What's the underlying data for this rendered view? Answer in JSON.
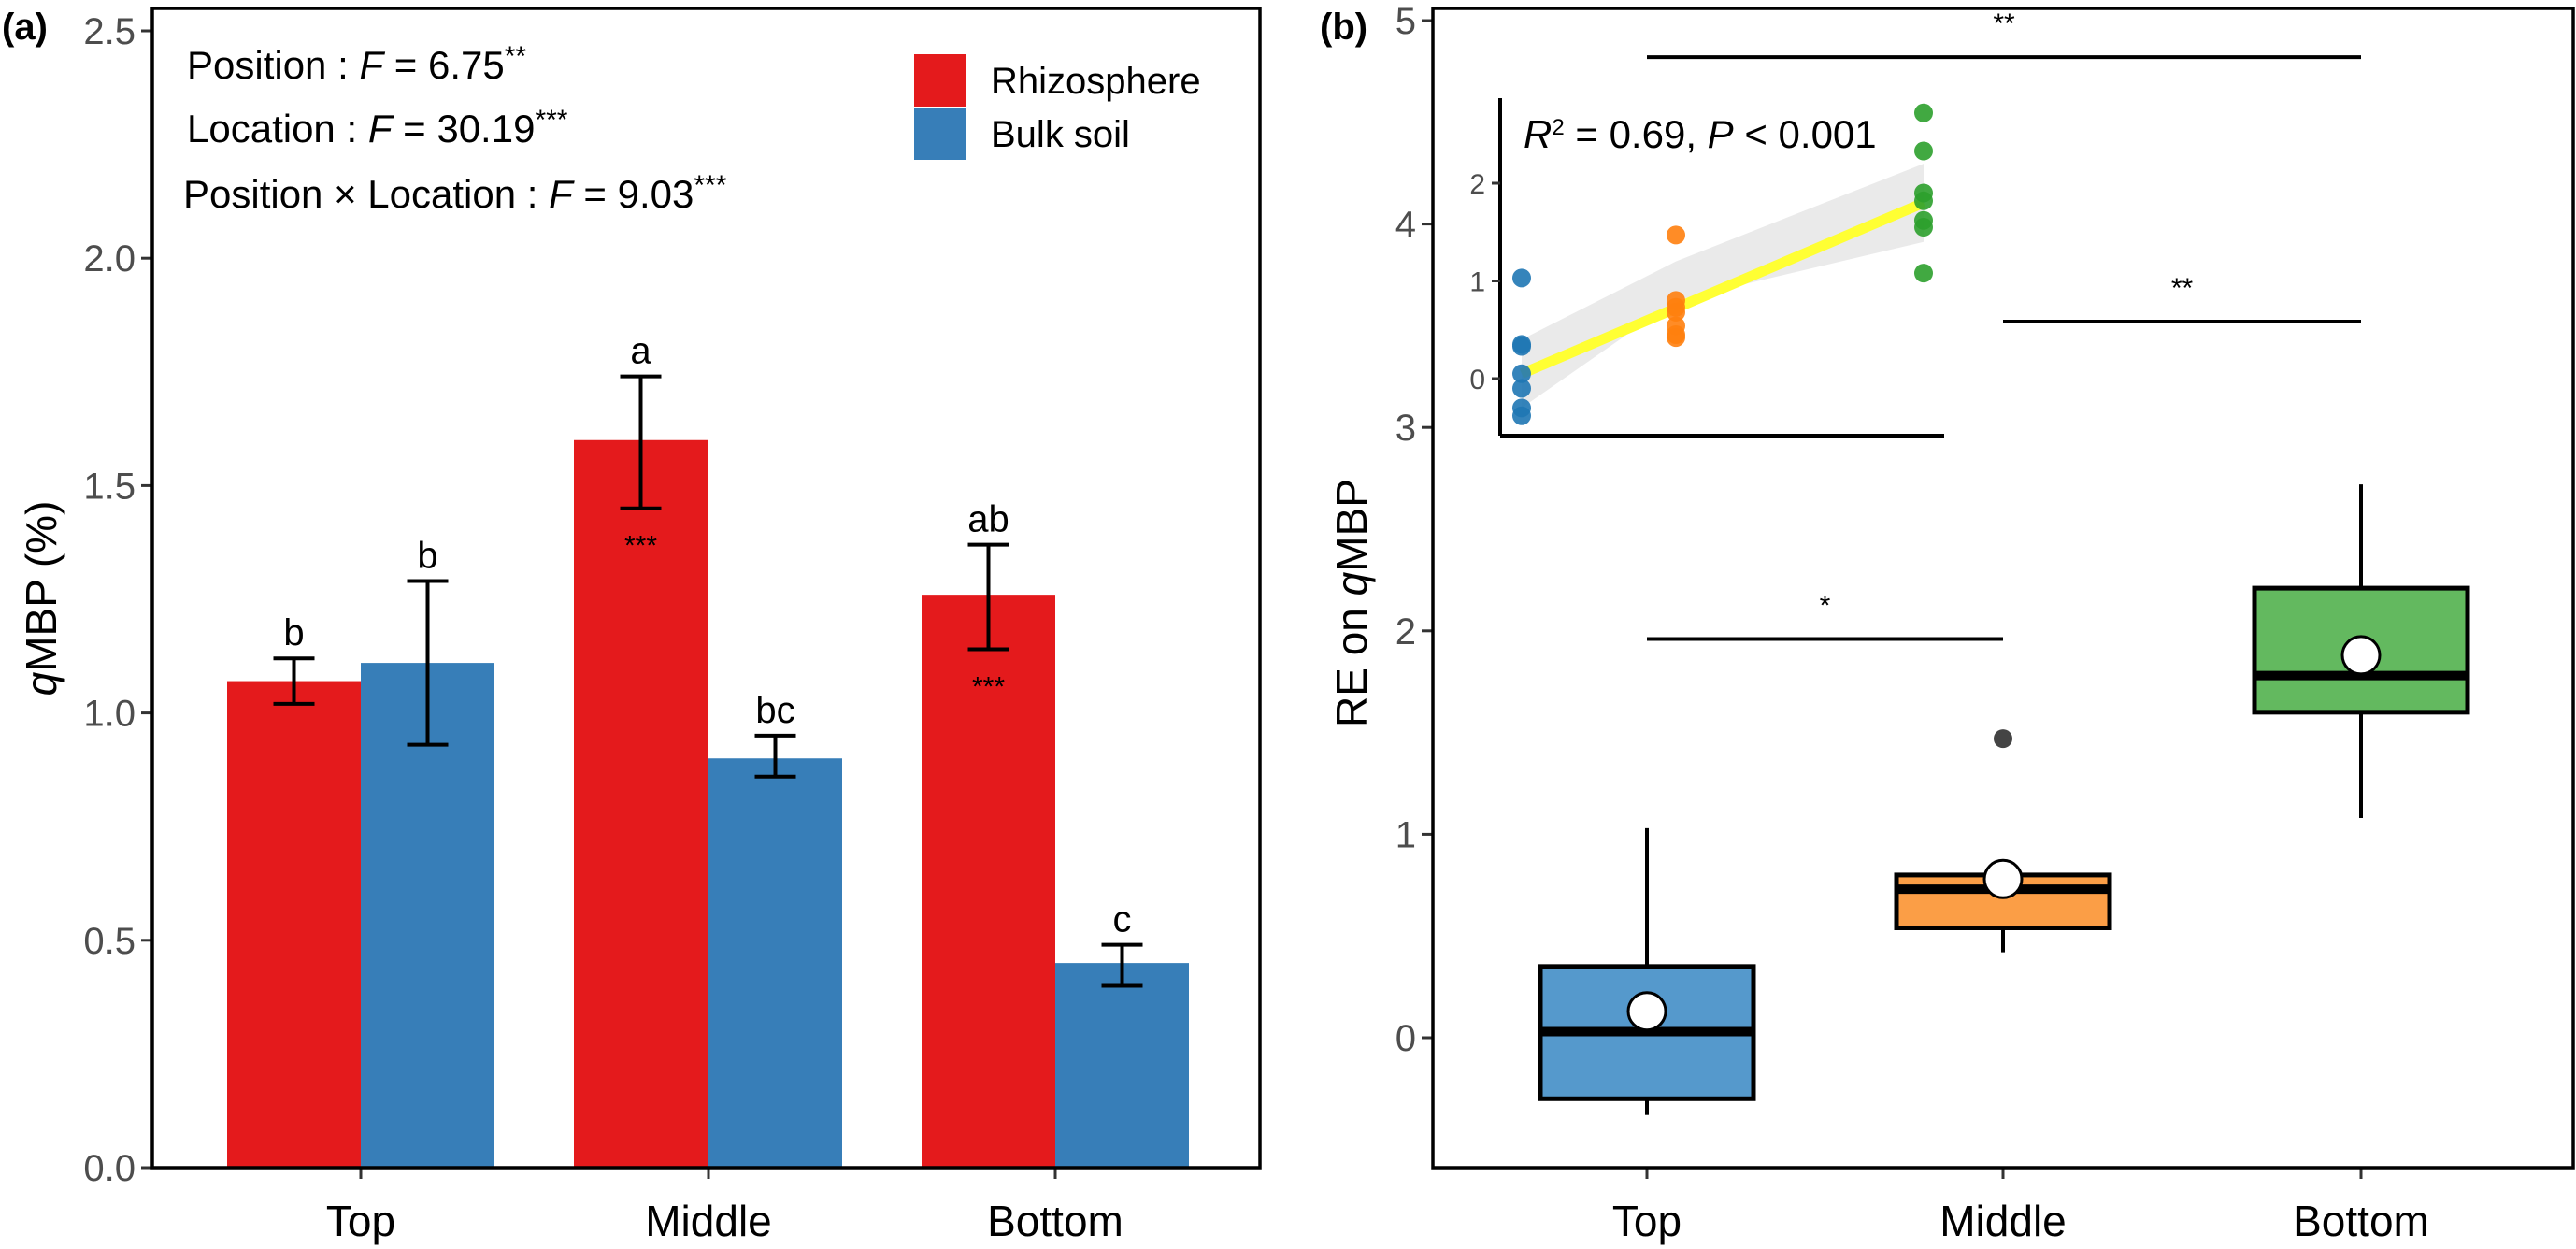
{
  "chart_data": [
    {
      "panel": "(a)",
      "type": "bar",
      "title": "",
      "xlabel": "",
      "ylabel": "qMBP (%)",
      "ylim": [
        0,
        2.5
      ],
      "yticks": [
        "0.0",
        "0.5",
        "1.0",
        "1.5",
        "2.0",
        "2.5"
      ],
      "ytick_values": [
        0,
        0.5,
        1.0,
        1.5,
        2.0,
        2.5
      ],
      "categories": [
        "Top",
        "Middle",
        "Bottom"
      ],
      "legend": {
        "position": "top-right",
        "entries": [
          "Rhizosphere",
          "Bulk soil"
        ]
      },
      "series": [
        {
          "name": "Rhizosphere",
          "color": "#E41A1C",
          "values": [
            1.07,
            1.6,
            1.26
          ],
          "error_low": [
            1.02,
            1.45,
            1.14
          ],
          "error_high": [
            1.12,
            1.74,
            1.37
          ],
          "letters": [
            "b",
            "a",
            "ab"
          ],
          "inner_stars": [
            "",
            "***",
            "***"
          ]
        },
        {
          "name": "Bulk soil",
          "color": "#377EB8",
          "values": [
            1.11,
            0.9,
            0.45
          ],
          "error_low": [
            0.93,
            0.86,
            0.4
          ],
          "error_high": [
            1.29,
            0.95,
            0.49
          ],
          "letters": [
            "b",
            "bc",
            "c"
          ],
          "inner_stars": [
            "",
            "",
            ""
          ]
        }
      ],
      "annotations": [
        {
          "label": "Position",
          "stat": "F",
          "value": "6.75",
          "sig": "**"
        },
        {
          "label": "Location",
          "stat": "F",
          "value": "30.19",
          "sig": "***"
        },
        {
          "label": "Position × Location",
          "stat": "F",
          "value": "9.03",
          "sig": "***"
        }
      ]
    },
    {
      "panel": "(b)",
      "type": "box",
      "title": "",
      "xlabel": "",
      "ylabel": "RE on qMBP",
      "ylim": [
        -0.65,
        5
      ],
      "yticks": [
        "0",
        "1",
        "2",
        "3",
        "4",
        "5"
      ],
      "ytick_values": [
        0,
        1,
        2,
        3,
        4,
        5
      ],
      "categories": [
        "Top",
        "Middle",
        "Bottom"
      ],
      "boxes": [
        {
          "name": "Top",
          "color": "#5599CC",
          "whisker_low": -0.38,
          "q1": -0.3,
          "median": 0.03,
          "q3": 0.35,
          "whisker_high": 1.03,
          "mean": 0.13,
          "outliers": []
        },
        {
          "name": "Middle",
          "color": "#FB9E46",
          "whisker_low": 0.42,
          "q1": 0.54,
          "median": 0.73,
          "q3": 0.8,
          "whisker_high": 0.8,
          "mean": 0.78,
          "outliers": [
            1.47
          ]
        },
        {
          "name": "Bottom",
          "color": "#63B95F",
          "whisker_low": 1.08,
          "q1": 1.6,
          "median": 1.78,
          "q3": 2.21,
          "whisker_high": 2.72,
          "mean": 1.88,
          "outliers": []
        }
      ],
      "comparisons": [
        {
          "from": "Top",
          "to": "Bottom",
          "y": 4.82,
          "label": "**"
        },
        {
          "from": "Middle",
          "to": "Bottom",
          "y": 3.52,
          "label": "**"
        },
        {
          "from": "Top",
          "to": "Middle",
          "y": 1.96,
          "label": "*"
        }
      ],
      "inset": {
        "type": "scatter",
        "annotation": "R² = 0.69, P < 0.001",
        "annotation_parts": {
          "r": "R",
          "sup": "2",
          "mid": " = 0.69, ",
          "p": "P",
          "tail": " < 0.001"
        },
        "ylim": [
          -0.55,
          2.85
        ],
        "yticks": [
          "0",
          "1",
          "2"
        ],
        "ytick_values": [
          0,
          1,
          2
        ],
        "groups": [
          {
            "name": "Top",
            "color": "#1F77B4",
            "y": [
              1.03,
              0.35,
              0.33,
              0.05,
              -0.1,
              -0.3,
              -0.38
            ]
          },
          {
            "name": "Middle",
            "color": "#FF7F0E",
            "y": [
              1.47,
              0.8,
              0.73,
              0.68,
              0.54,
              0.45,
              0.42
            ]
          },
          {
            "name": "Bottom",
            "color": "#2CA02C",
            "y": [
              2.72,
              2.33,
              1.9,
              1.82,
              1.62,
              1.55,
              1.08
            ]
          }
        ],
        "fit": {
          "color": "#FFFF33",
          "y_start": 0.05,
          "y_end": 1.8,
          "ci_band": [
            [
              -0.3,
              0.4
            ],
            [
              0.8,
              1.2
            ],
            [
              1.4,
              2.2
            ]
          ]
        }
      }
    }
  ]
}
